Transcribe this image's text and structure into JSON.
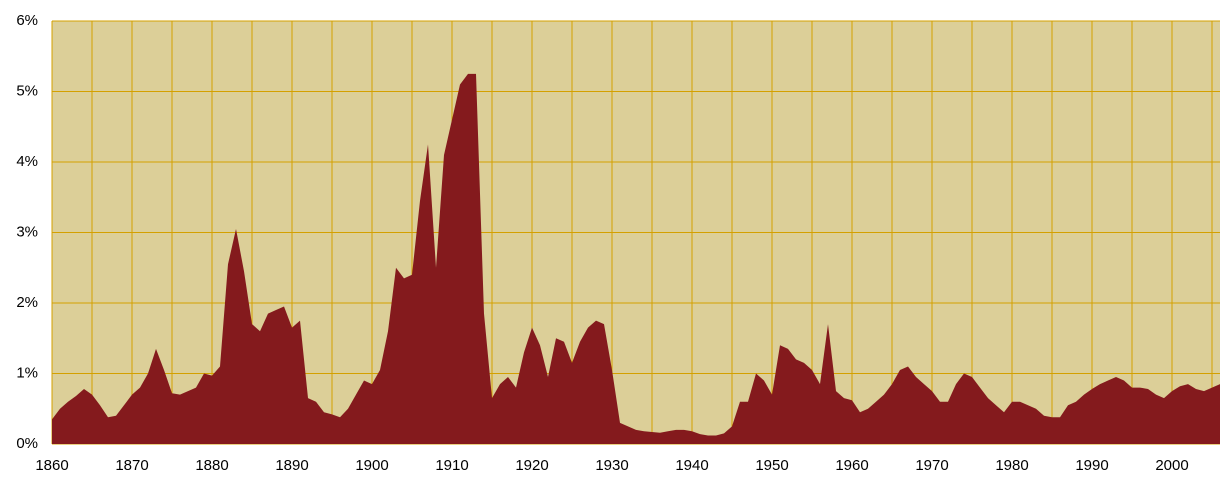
{
  "chart_data": {
    "type": "area",
    "x": [
      1860,
      1861,
      1862,
      1863,
      1864,
      1865,
      1866,
      1867,
      1868,
      1869,
      1870,
      1871,
      1872,
      1873,
      1874,
      1875,
      1876,
      1877,
      1878,
      1879,
      1880,
      1881,
      1882,
      1883,
      1884,
      1885,
      1886,
      1887,
      1888,
      1889,
      1890,
      1891,
      1892,
      1893,
      1894,
      1895,
      1896,
      1897,
      1898,
      1899,
      1900,
      1901,
      1902,
      1903,
      1904,
      1905,
      1906,
      1907,
      1908,
      1909,
      1910,
      1911,
      1912,
      1913,
      1914,
      1915,
      1916,
      1917,
      1918,
      1919,
      1920,
      1921,
      1922,
      1923,
      1924,
      1925,
      1926,
      1927,
      1928,
      1929,
      1930,
      1931,
      1932,
      1933,
      1934,
      1935,
      1936,
      1937,
      1938,
      1939,
      1940,
      1941,
      1942,
      1943,
      1944,
      1945,
      1946,
      1947,
      1948,
      1949,
      1950,
      1951,
      1952,
      1953,
      1954,
      1955,
      1956,
      1957,
      1958,
      1959,
      1960,
      1961,
      1962,
      1963,
      1964,
      1965,
      1966,
      1967,
      1968,
      1969,
      1970,
      1971,
      1972,
      1973,
      1974,
      1975,
      1976,
      1977,
      1978,
      1979,
      1980,
      1981,
      1982,
      1983,
      1984,
      1985,
      1986,
      1987,
      1988,
      1989,
      1990,
      1991,
      1992,
      1993,
      1994,
      1995,
      1996,
      1997,
      1998,
      1999,
      2000,
      2001,
      2002,
      2003,
      2004,
      2005,
      2006
    ],
    "values": [
      0.35,
      0.5,
      0.6,
      0.68,
      0.78,
      0.7,
      0.55,
      0.38,
      0.4,
      0.55,
      0.7,
      0.8,
      1.0,
      1.35,
      1.05,
      0.72,
      0.7,
      0.75,
      0.8,
      1.0,
      0.97,
      1.1,
      2.55,
      3.05,
      2.45,
      1.7,
      1.6,
      1.85,
      1.9,
      1.95,
      1.65,
      1.75,
      0.65,
      0.6,
      0.45,
      0.42,
      0.38,
      0.5,
      0.7,
      0.9,
      0.85,
      1.05,
      1.6,
      2.5,
      2.35,
      2.4,
      3.45,
      4.25,
      2.5,
      4.1,
      4.6,
      5.1,
      5.25,
      5.25,
      1.85,
      0.65,
      0.85,
      0.95,
      0.8,
      1.3,
      1.65,
      1.4,
      0.95,
      1.5,
      1.45,
      1.15,
      1.45,
      1.65,
      1.75,
      1.7,
      1.05,
      0.3,
      0.25,
      0.2,
      0.18,
      0.17,
      0.16,
      0.18,
      0.2,
      0.2,
      0.18,
      0.14,
      0.12,
      0.12,
      0.15,
      0.25,
      0.6,
      0.6,
      1.0,
      0.9,
      0.7,
      1.4,
      1.35,
      1.2,
      1.15,
      1.05,
      0.85,
      1.7,
      0.75,
      0.65,
      0.62,
      0.45,
      0.5,
      0.6,
      0.7,
      0.85,
      1.05,
      1.1,
      0.95,
      0.85,
      0.75,
      0.6,
      0.6,
      0.85,
      1.0,
      0.95,
      0.8,
      0.65,
      0.55,
      0.45,
      0.6,
      0.6,
      0.55,
      0.5,
      0.4,
      0.38,
      0.38,
      0.55,
      0.6,
      0.7,
      0.78,
      0.85,
      0.9,
      0.95,
      0.9,
      0.8,
      0.8,
      0.78,
      0.7,
      0.65,
      0.75,
      0.82,
      0.85,
      0.78,
      0.75,
      0.8,
      0.85
    ],
    "color": "#841a1d",
    "background": "#dccf98",
    "grid_color": "#d4a000",
    "xlim": [
      1860,
      2006
    ],
    "xticks": [
      1860,
      1870,
      1880,
      1890,
      1900,
      1910,
      1920,
      1930,
      1940,
      1950,
      1960,
      1970,
      1980,
      1990,
      2000
    ],
    "xminorticks": [
      1865,
      1875,
      1885,
      1895,
      1905,
      1915,
      1925,
      1935,
      1945,
      1955,
      1965,
      1975,
      1985,
      1995,
      2005
    ],
    "ylim": [
      0,
      6
    ],
    "yticks": [
      {
        "value": 0,
        "label": "0%"
      },
      {
        "value": 1,
        "label": "1%"
      },
      {
        "value": 2,
        "label": "2%"
      },
      {
        "value": 3,
        "label": "3%"
      },
      {
        "value": 4,
        "label": "4%"
      },
      {
        "value": 5,
        "label": "5%"
      },
      {
        "value": 6,
        "label": "6%"
      }
    ],
    "grid": true
  }
}
